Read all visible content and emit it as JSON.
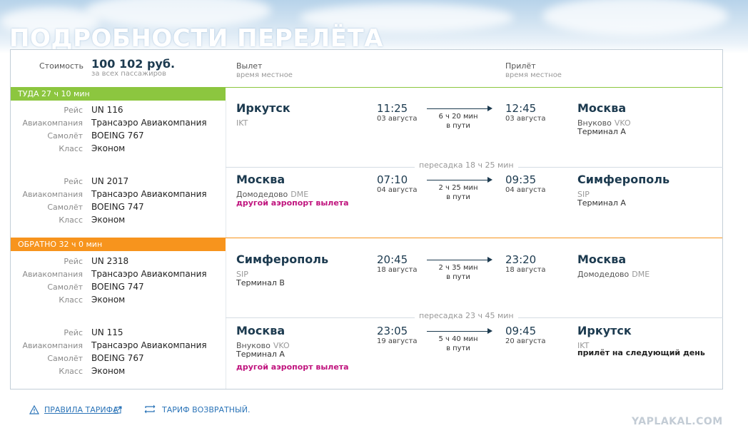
{
  "page": {
    "title": "ПОДРОБНОСТИ ПЕРЕЛЁТА"
  },
  "header": {
    "price_label": "Стоимость",
    "price_value": "100 102 руб.",
    "price_note": "за всех пассажиров",
    "depart_label": "Вылет",
    "depart_note": "время местное",
    "arrive_label": "Прилёт",
    "arrive_note": "время местное"
  },
  "labels": {
    "flight": "Рейс",
    "airline": "Авиакомпания",
    "plane": "Самолёт",
    "class": "Класс"
  },
  "outbound": {
    "band": "ТУДА 27 ч 10 мин",
    "band_color": "#8cc63f",
    "transfer": "пересадка 18 ч 25 мин",
    "segments": [
      {
        "flight": "UN 116",
        "airline": "Трансаэро Авиакомпания",
        "plane": "BOEING 767",
        "class": "Эконом",
        "from_city": "Иркутск",
        "from_airport": "",
        "from_code": "IKT",
        "from_terminal": "",
        "from_note": "",
        "dep_time": "11:25",
        "dep_date": "03 августа",
        "duration": "6 ч 20 мин",
        "duration_note": "в пути",
        "arr_time": "12:45",
        "arr_date": "03 августа",
        "to_city": "Москва",
        "to_airport": "Внуково",
        "to_code": "VKO",
        "to_terminal": "Терминал A",
        "to_note": ""
      },
      {
        "flight": "UN 2017",
        "airline": "Трансаэро Авиакомпания",
        "plane": "BOEING 747",
        "class": "Эконом",
        "from_city": "Москва",
        "from_airport": "Домодедово",
        "from_code": "DME",
        "from_terminal": "",
        "from_note": "другой аэропорт вылета",
        "dep_time": "07:10",
        "dep_date": "04 августа",
        "duration": "2 ч 25 мин",
        "duration_note": "в пути",
        "arr_time": "09:35",
        "arr_date": "04 августа",
        "to_city": "Симферополь",
        "to_airport": "",
        "to_code": "SIP",
        "to_terminal": "Терминал A",
        "to_note": ""
      }
    ]
  },
  "return": {
    "band": "ОБРАТНО 32 ч 0 мин",
    "band_color": "#f7941d",
    "transfer": "пересадка 23 ч 45 мин",
    "segments": [
      {
        "flight": "UN 2318",
        "airline": "Трансаэро Авиакомпания",
        "plane": "BOEING 747",
        "class": "Эконом",
        "from_city": "Симферополь",
        "from_airport": "",
        "from_code": "SIP",
        "from_terminal": "Терминал B",
        "from_note": "",
        "dep_time": "20:45",
        "dep_date": "18 августа",
        "duration": "2 ч 35 мин",
        "duration_note": "в пути",
        "arr_time": "23:20",
        "arr_date": "18 августа",
        "to_city": "Москва",
        "to_airport": "Домодедово",
        "to_code": "DME",
        "to_terminal": "",
        "to_note": ""
      },
      {
        "flight": "UN 115",
        "airline": "Трансаэро Авиакомпания",
        "plane": "BOEING 767",
        "class": "Эконом",
        "from_city": "Москва",
        "from_airport": "Внуково",
        "from_code": "VKO",
        "from_terminal": "Терминал A",
        "from_note": "другой аэропорт вылета",
        "dep_time": "23:05",
        "dep_date": "19 августа",
        "duration": "5 ч 40 мин",
        "duration_note": "в пути",
        "arr_time": "09:45",
        "arr_date": "20 августа",
        "to_city": "Иркутск",
        "to_airport": "",
        "to_code": "IKT",
        "to_terminal": "",
        "to_note": "прилёт на следующий день"
      }
    ]
  },
  "footer": {
    "rules_link": "ПРАВИЛА ТАРИФА",
    "tariff_text": "ТАРИФ ВОЗВРАТНЫЙ.",
    "icons": [
      "warning-triangle-icon",
      "external-link-icon",
      "return-arrows-icon"
    ]
  },
  "watermark": "YAPLAKAL.COM",
  "colors": {
    "title": "#ffffff",
    "city": "#1c3a4f",
    "warn": "#c0147e",
    "link": "#2b74b8"
  }
}
